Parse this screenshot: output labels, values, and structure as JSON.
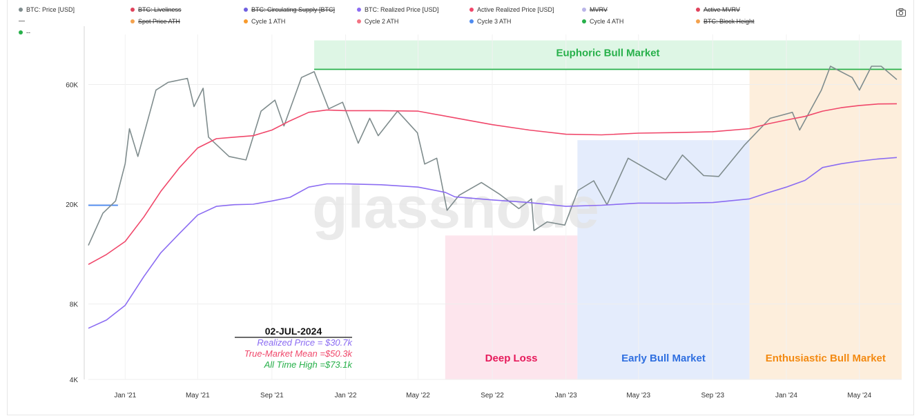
{
  "legend": [
    {
      "label": "BTC: Price [USD]",
      "color": "#7f8c8d",
      "active": true
    },
    {
      "label": "BTC: Liveliness",
      "color": "#e0435c",
      "active": false
    },
    {
      "label": "BTC: Circulating Supply [BTC]",
      "color": "#6f5fe0",
      "active": false
    },
    {
      "label": "BTC: Realized Price [USD]",
      "color": "#8b6cf2",
      "active": true
    },
    {
      "label": "Active Realized Price [USD]",
      "color": "#f0476a",
      "active": true
    },
    {
      "label": "MVRV",
      "color": "#b9b4e8",
      "active": false
    },
    {
      "label": "Active MVRV",
      "color": "#e0435c",
      "active": false
    },
    {
      "label": "",
      "color": "#777777",
      "active": true,
      "style": "dash"
    },
    {
      "label": "Spot Price ATH",
      "color": "#f3a24e",
      "active": false
    },
    {
      "label": "Cycle 1 ATH",
      "color": "#f89a2c",
      "active": true
    },
    {
      "label": "Cycle 2 ATH",
      "color": "#f37383",
      "active": true
    },
    {
      "label": "Cycle 3 ATH",
      "color": "#4f8bf0",
      "active": true
    },
    {
      "label": "Cycle 4 ATH",
      "color": "#27b04a",
      "active": true
    },
    {
      "label": "BTC: Block Height",
      "color": "#f3a24e",
      "active": false
    },
    {
      "label": "--",
      "color": "#27b04a",
      "active": true
    }
  ],
  "watermark": "glassnode",
  "chart_data": {
    "type": "line",
    "y_scale": "log",
    "ylim": [
      4000,
      95000
    ],
    "xlim": [
      "2020-11-01",
      "2024-07-10"
    ],
    "y_ticks": [
      {
        "value": 4000,
        "label": "4K"
      },
      {
        "value": 8000,
        "label": "8K"
      },
      {
        "value": 20000,
        "label": "20K"
      },
      {
        "value": 60000,
        "label": "60K"
      }
    ],
    "x_ticks": [
      {
        "date": "2021-01-01",
        "label": "Jan '21"
      },
      {
        "date": "2021-05-01",
        "label": "May '21"
      },
      {
        "date": "2021-09-01",
        "label": "Sep '21"
      },
      {
        "date": "2022-01-01",
        "label": "Jan '22"
      },
      {
        "date": "2022-05-01",
        "label": "May '22"
      },
      {
        "date": "2022-09-01",
        "label": "Sep '22"
      },
      {
        "date": "2023-01-01",
        "label": "Jan '23"
      },
      {
        "date": "2023-05-01",
        "label": "May '23"
      },
      {
        "date": "2023-09-01",
        "label": "Sep '23"
      },
      {
        "date": "2024-01-01",
        "label": "Jan '24"
      },
      {
        "date": "2024-05-01",
        "label": "May '24"
      }
    ],
    "regions": [
      {
        "label": "Euphoric Bull Market",
        "from": "2021-11-10",
        "to": "2024-07-10",
        "y_from": 69000,
        "y_to": 90000,
        "fill": "#d8f5e1",
        "text": "#27b04a",
        "label_pos": "top"
      },
      {
        "label": "Deep Loss",
        "from": "2022-06-15",
        "to": "2023-01-20",
        "y_from": 4000,
        "y_to": 15000,
        "fill": "#fde0ea",
        "text": "#e6195a",
        "label_pos": "bottom"
      },
      {
        "label": "Early Bull Market",
        "from": "2023-01-20",
        "to": "2023-11-01",
        "y_from": 4000,
        "y_to": 36000,
        "fill": "#dfe9fb",
        "text": "#2f6fe0",
        "label_pos": "bottom"
      },
      {
        "label": "Enthusiastic Bull Market",
        "from": "2023-11-01",
        "to": "2024-07-10",
        "y_from": 4000,
        "y_to": 69000,
        "fill": "#fdebd6",
        "text": "#f38a12",
        "label_pos": "bottom"
      }
    ],
    "lines": [
      {
        "color": "#4f8bf0",
        "from": "2020-11-01",
        "to": "2020-12-20",
        "y": 19800
      },
      {
        "color": "#27b04a",
        "from": "2021-11-10",
        "to": "2024-07-10",
        "y": 69000
      }
    ],
    "annotation": {
      "date": "02-JUL-2024",
      "rows": [
        {
          "text": "Realized Price = $30.7k",
          "color": "#8b6cf2"
        },
        {
          "text": "True-Market Mean =$50.3k",
          "color": "#f0476a"
        },
        {
          "text": "All Time High =$73.1k",
          "color": "#27b04a"
        }
      ]
    },
    "series": [
      {
        "name": "BTC: Price [USD]",
        "color": "#7f8c8d",
        "width": 1.6,
        "x": [
          "2020-11-01",
          "2020-11-25",
          "2020-12-16",
          "2021-01-01",
          "2021-01-08",
          "2021-01-22",
          "2021-02-21",
          "2021-03-13",
          "2021-04-14",
          "2021-04-25",
          "2021-05-10",
          "2021-05-19",
          "2021-06-22",
          "2021-07-20",
          "2021-08-14",
          "2021-09-06",
          "2021-09-21",
          "2021-10-20",
          "2021-11-10",
          "2021-12-04",
          "2021-12-27",
          "2022-01-22",
          "2022-02-10",
          "2022-02-24",
          "2022-03-28",
          "2022-04-30",
          "2022-05-12",
          "2022-06-01",
          "2022-06-18",
          "2022-07-08",
          "2022-08-14",
          "2022-09-12",
          "2022-10-15",
          "2022-11-05",
          "2022-11-09",
          "2022-12-01",
          "2022-12-30",
          "2023-01-21",
          "2023-02-16",
          "2023-03-10",
          "2023-04-14",
          "2023-06-15",
          "2023-07-13",
          "2023-08-17",
          "2023-09-11",
          "2023-10-24",
          "2023-12-05",
          "2024-01-11",
          "2024-01-23",
          "2024-02-28",
          "2024-03-14",
          "2024-04-19",
          "2024-05-01",
          "2024-05-21",
          "2024-06-06",
          "2024-07-02"
        ],
        "y": [
          13700,
          18400,
          20600,
          29000,
          40000,
          31000,
          57000,
          61200,
          63500,
          49000,
          58000,
          37000,
          31000,
          30000,
          47000,
          52000,
          41000,
          64000,
          67500,
          48000,
          51000,
          35000,
          44000,
          37500,
          47000,
          38500,
          28900,
          30500,
          18900,
          21700,
          24400,
          22000,
          19200,
          21000,
          15700,
          17000,
          16500,
          22700,
          24800,
          19900,
          30500,
          25000,
          31400,
          26000,
          25800,
          34500,
          44000,
          46500,
          39500,
          57000,
          71000,
          64000,
          57000,
          71000,
          71000,
          62800
        ]
      },
      {
        "name": "Active Realized Price [USD]",
        "color": "#f0476a",
        "width": 1.6,
        "x": [
          "2020-11-01",
          "2020-12-01",
          "2021-01-01",
          "2021-02-01",
          "2021-03-01",
          "2021-04-01",
          "2021-05-01",
          "2021-06-01",
          "2021-07-01",
          "2021-08-01",
          "2021-09-01",
          "2021-10-01",
          "2021-11-01",
          "2021-12-01",
          "2022-01-01",
          "2022-03-01",
          "2022-05-01",
          "2022-07-01",
          "2022-09-01",
          "2022-11-01",
          "2023-01-01",
          "2023-03-01",
          "2023-05-01",
          "2023-07-01",
          "2023-09-01",
          "2023-11-01",
          "2023-12-01",
          "2024-01-01",
          "2024-02-01",
          "2024-03-01",
          "2024-04-01",
          "2024-05-01",
          "2024-06-01",
          "2024-07-02"
        ],
        "y": [
          11500,
          12600,
          14200,
          17800,
          22500,
          28000,
          33500,
          36500,
          37000,
          37500,
          39500,
          43000,
          46500,
          47500,
          47200,
          47200,
          47000,
          44200,
          41500,
          39500,
          38000,
          37800,
          38400,
          38600,
          38900,
          40000,
          41800,
          43300,
          44800,
          47000,
          48500,
          49500,
          50200,
          50300
        ]
      },
      {
        "name": "BTC: Realized Price [USD]",
        "color": "#8b6cf2",
        "width": 1.6,
        "x": [
          "2020-11-01",
          "2020-12-01",
          "2021-01-01",
          "2021-02-01",
          "2021-03-01",
          "2021-04-01",
          "2021-05-01",
          "2021-06-01",
          "2021-07-01",
          "2021-08-01",
          "2021-09-01",
          "2021-10-01",
          "2021-11-01",
          "2021-12-01",
          "2022-01-01",
          "2022-03-01",
          "2022-05-01",
          "2022-06-15",
          "2022-07-01",
          "2022-09-01",
          "2022-11-01",
          "2023-01-01",
          "2023-03-01",
          "2023-05-01",
          "2023-07-01",
          "2023-09-01",
          "2023-11-01",
          "2023-12-01",
          "2024-01-01",
          "2024-02-01",
          "2024-03-01",
          "2024-04-01",
          "2024-05-01",
          "2024-06-01",
          "2024-07-02"
        ],
        "y": [
          6400,
          6900,
          7900,
          10300,
          12800,
          15300,
          18100,
          19600,
          19900,
          20000,
          20600,
          21300,
          23400,
          24100,
          24100,
          23900,
          23400,
          22300,
          21400,
          20800,
          20300,
          19600,
          19800,
          20200,
          20200,
          20300,
          21000,
          22200,
          23400,
          24900,
          28000,
          29000,
          29700,
          30300,
          30700
        ]
      }
    ]
  }
}
